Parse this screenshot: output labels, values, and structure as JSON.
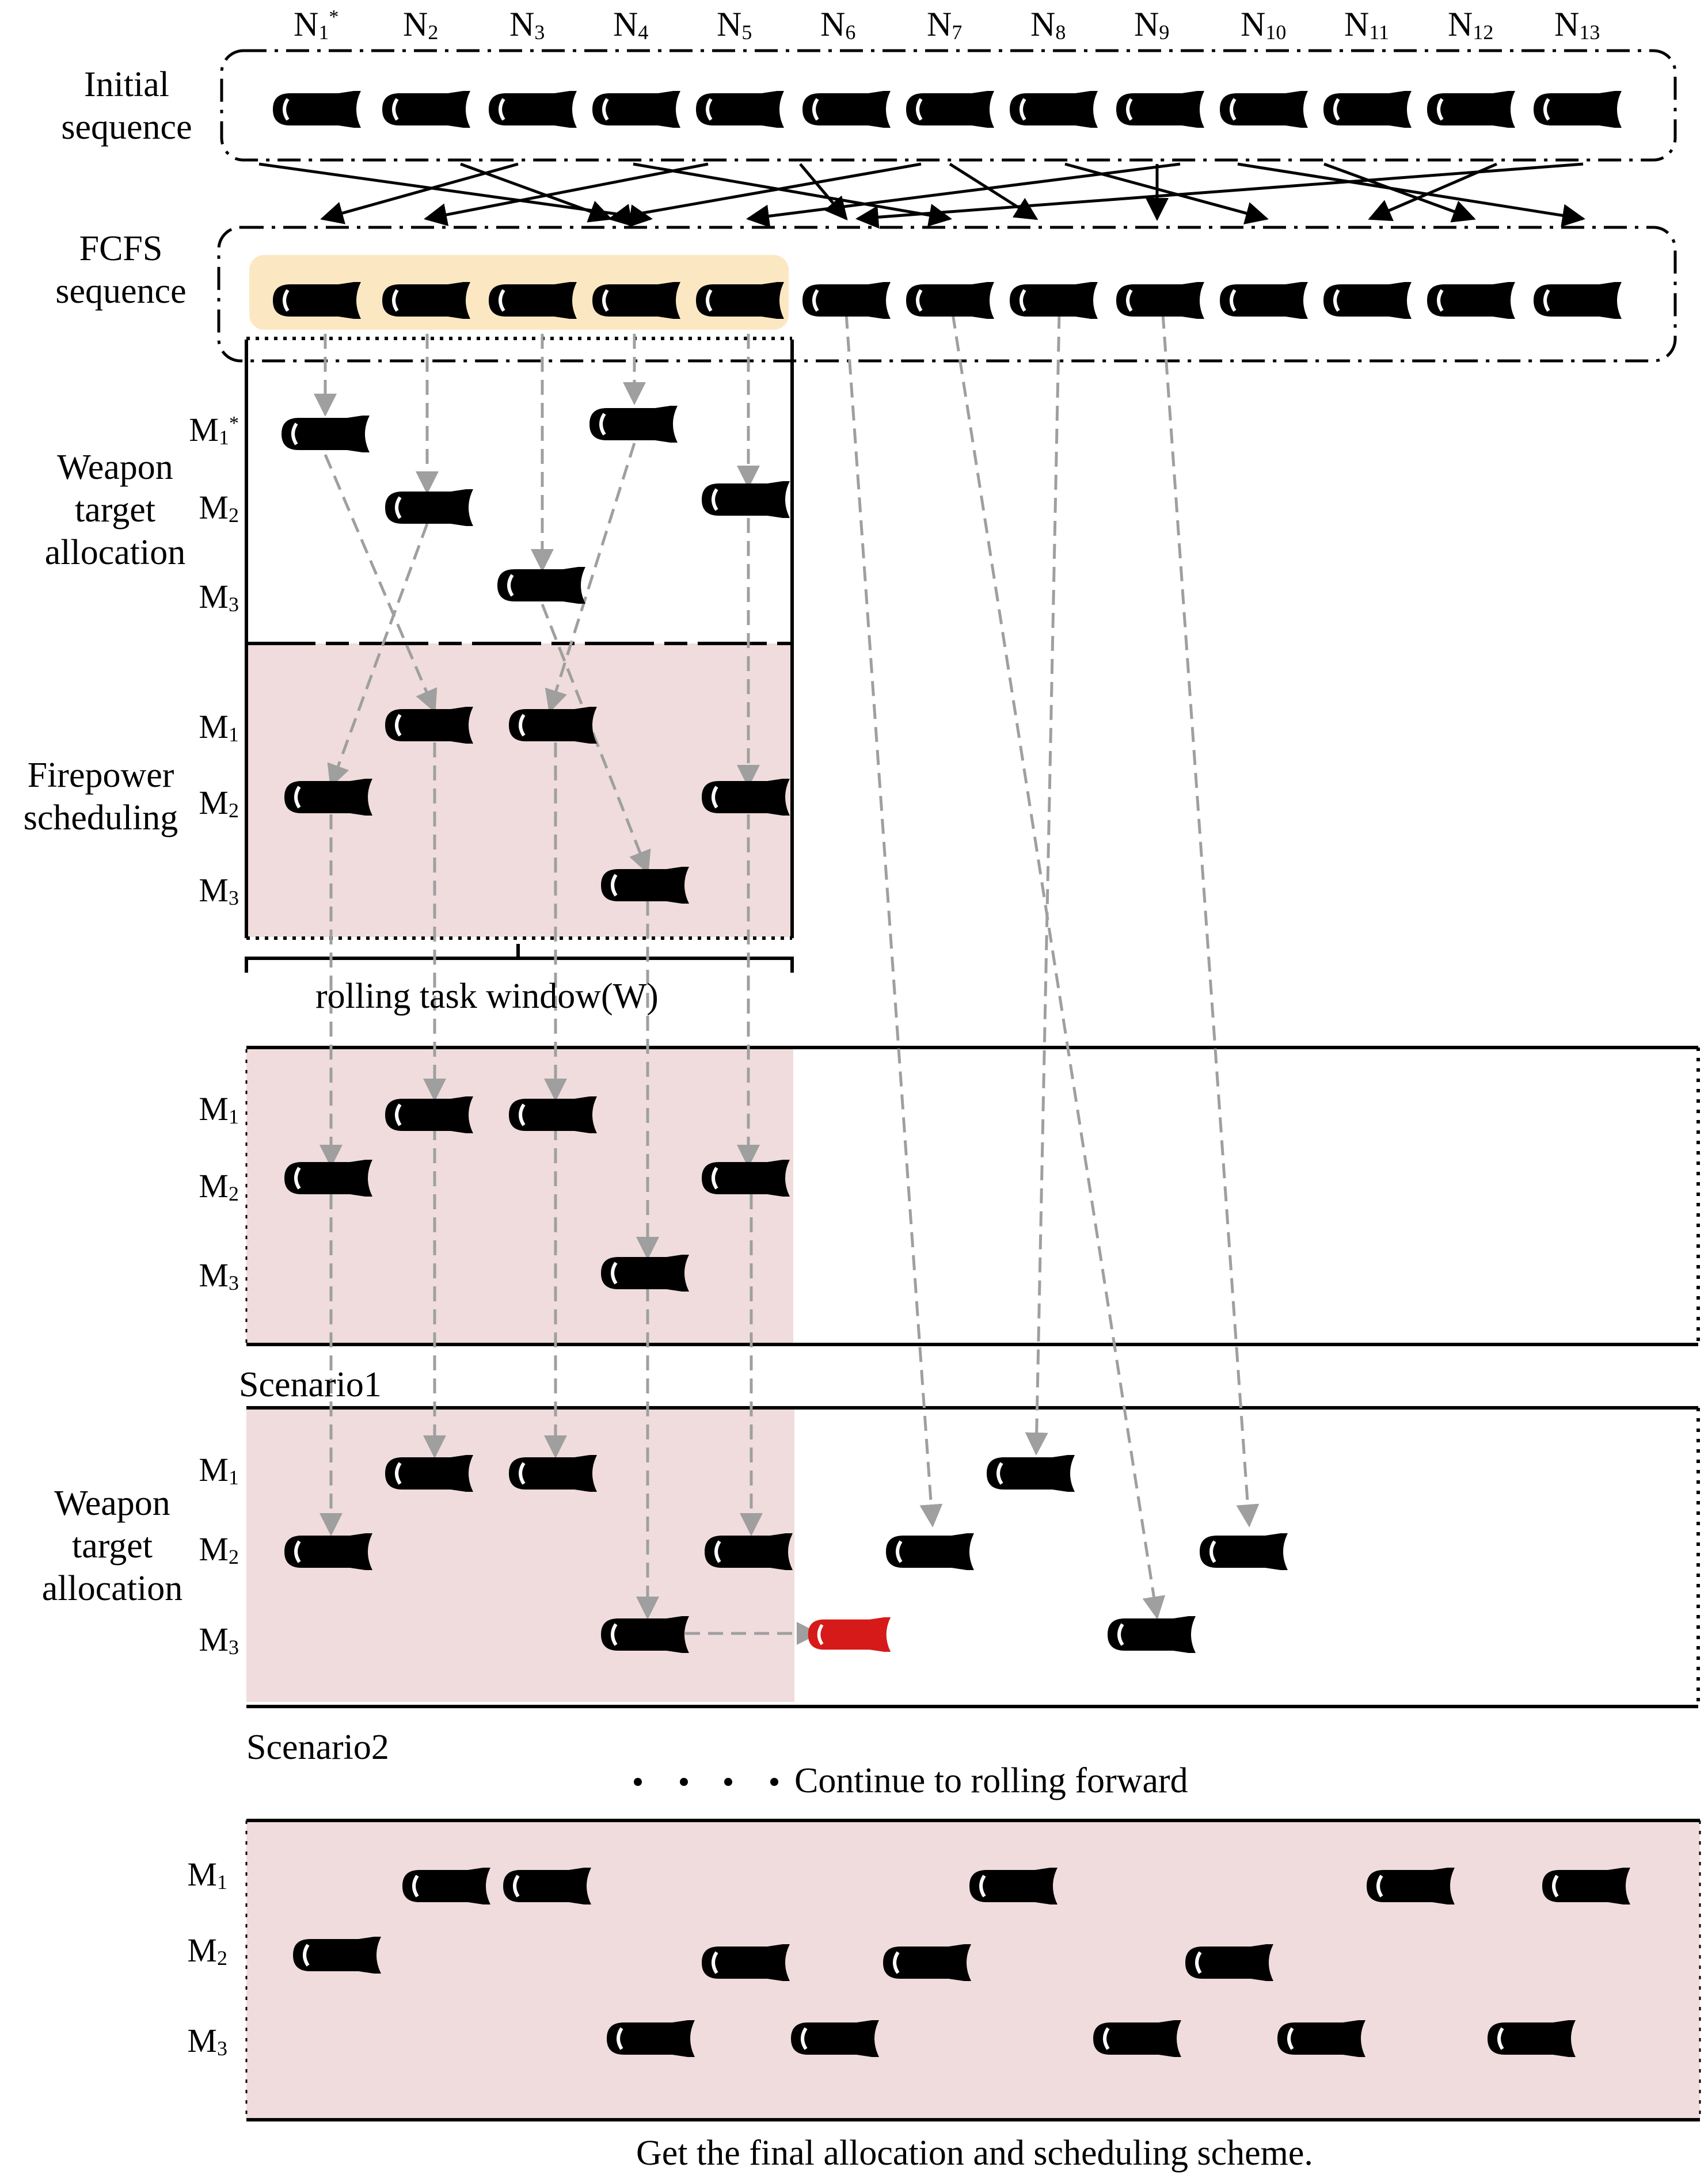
{
  "node_labels": [
    "N1*",
    "N2",
    "N3",
    "N4",
    "N5",
    "N6",
    "N7",
    "N8",
    "N9",
    "N10",
    "N11",
    "N12",
    "N13"
  ],
  "node_labels_parts": [
    {
      "base": "N",
      "sub": "1",
      "sup": "*"
    },
    {
      "base": "N",
      "sub": "2"
    },
    {
      "base": "N",
      "sub": "3"
    },
    {
      "base": "N",
      "sub": "4"
    },
    {
      "base": "N",
      "sub": "5"
    },
    {
      "base": "N",
      "sub": "6"
    },
    {
      "base": "N",
      "sub": "7"
    },
    {
      "base": "N",
      "sub": "8"
    },
    {
      "base": "N",
      "sub": "9"
    },
    {
      "base": "N",
      "sub": "10"
    },
    {
      "base": "N",
      "sub": "11"
    },
    {
      "base": "N",
      "sub": "12"
    },
    {
      "base": "N",
      "sub": "13"
    }
  ],
  "sections": {
    "initial": [
      "Initial",
      "sequence"
    ],
    "fcfs": [
      "FCFS",
      "sequence"
    ],
    "wta": [
      "Weapon",
      "target",
      "allocation"
    ],
    "firepower": [
      "Firepower",
      "scheduling"
    ],
    "wta2": [
      "Weapon",
      "target",
      "allocation"
    ]
  },
  "missile_labels": {
    "m1_star": "M1*",
    "m1": "M1",
    "m2": "M2",
    "m3": "M3"
  },
  "window_label": "rolling task window(W)",
  "scenario1": "Scenario1",
  "scenario2": "Scenario2",
  "continue_label": "Continue to rolling forward",
  "final_caption": "Get the final allocation and scheduling scheme.",
  "colors": {
    "highlight": "#fbe8c2",
    "pink": "#f0dcdc",
    "arrow_gray": "#9f9f9f",
    "red_missile": "#d61a1a"
  }
}
